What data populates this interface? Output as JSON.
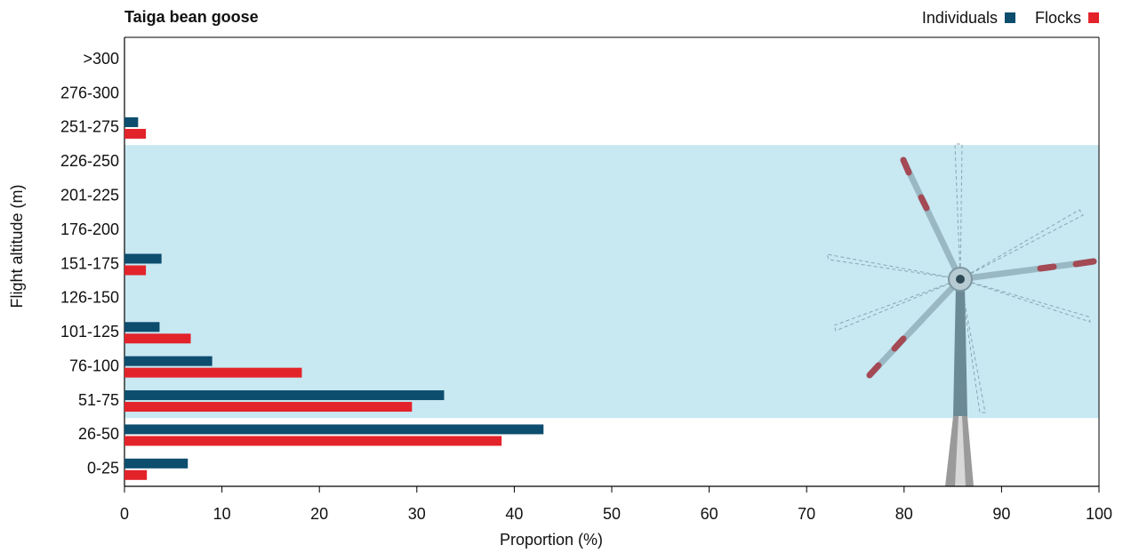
{
  "chart_data": {
    "type": "hbar",
    "title": "Taiga bean goose",
    "xlabel": "Proportion (%)",
    "ylabel": "Flight altitude (m)",
    "categories": [
      "0-25",
      "26-50",
      "51-75",
      "76-100",
      "101-125",
      "126-150",
      "151-175",
      "176-200",
      "201-225",
      "226-250",
      "251-275",
      "276-300",
      ">300"
    ],
    "series": [
      {
        "name": "Individuals",
        "color": "#0d4d6e",
        "values": [
          6.5,
          43,
          32.8,
          9,
          3.6,
          0,
          3.8,
          0,
          0,
          0,
          1.4,
          0,
          0
        ]
      },
      {
        "name": "Flocks",
        "color": "#e3232a",
        "values": [
          2.3,
          38.7,
          29.5,
          18.2,
          6.8,
          0,
          2.2,
          0,
          0,
          0,
          2.2,
          0,
          0
        ]
      }
    ],
    "highlight_band": [
      "51-75",
      "226-250"
    ],
    "highlight_color": "#c8e8f2",
    "xlim": [
      0,
      100
    ],
    "xticks": [
      0,
      10,
      20,
      30,
      40,
      50,
      60,
      70,
      80,
      90,
      100
    ],
    "legend": "top-right"
  }
}
